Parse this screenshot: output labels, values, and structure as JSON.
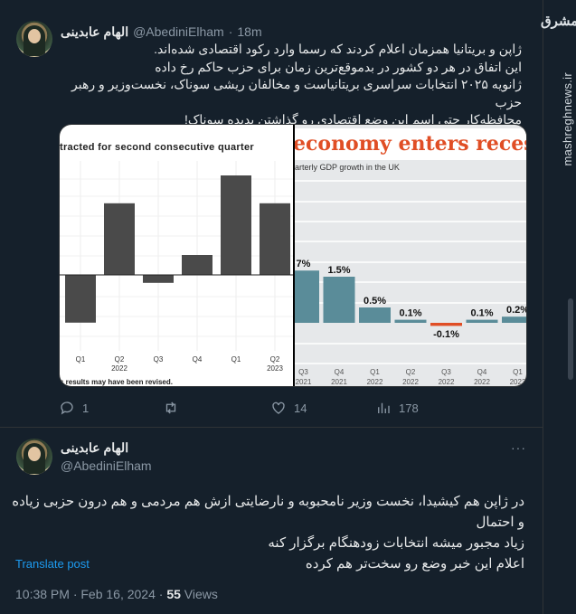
{
  "tweet1": {
    "display_name": "الهام عابدینی",
    "handle": "@AbediniElham",
    "time": "18m",
    "text_lines": [
      "ژاپن و بریتانیا همزمان اعلام کردند که رسما وارد رکود اقتصادی شده‌اند.",
      "این اتفاق در هر دو کشور در بدموقع‌ترین زمان برای حزب حاکم رخ داده",
      "ژانویه ۲۰۲۵ انتخابات سراسری بریتانیاست و مخالفان ریشی سوناک، نخست‌وزیر و رهبر حزب",
      "محافظه‌کار حتی اسم این وضع اقتصادی رو گذاشتن پدیده سوناک!"
    ],
    "actions": {
      "replies": "1",
      "likes": "14",
      "views": "178"
    }
  },
  "left_chart": {
    "title": "tracted for second consecutive quarter",
    "quarters": [
      "Q1",
      "Q2",
      "Q3",
      "Q4",
      "Q1",
      "Q2"
    ],
    "years": [
      "",
      "2022",
      "",
      "",
      "",
      "2023"
    ],
    "values": [
      -0.6,
      0.9,
      -0.1,
      0.25,
      1.25,
      0.9
    ],
    "footnote": "s results may have been revised.",
    "bar_color": "#4a4a4a"
  },
  "right_chart": {
    "title": "economy enters reces",
    "subtitle": "arterly GDP growth in the UK",
    "quarters": [
      "Q3",
      "Q4",
      "Q1",
      "Q2",
      "Q3",
      "Q4",
      "Q1"
    ],
    "years": [
      "2021",
      "2021",
      "2022",
      "2022",
      "2022",
      "2022",
      "2023"
    ],
    "values": [
      1.7,
      1.5,
      0.5,
      0.1,
      -0.1,
      0.1,
      0.2
    ],
    "labels": [
      "7%",
      "1.5%",
      "0.5%",
      "0.1%",
      "-0.1%",
      "0.1%",
      "0.2%"
    ],
    "title_color": "#e04e25",
    "bar_color": "#5a8c99",
    "negative_color": "#e04e25"
  },
  "tweet2": {
    "display_name": "الهام عابدینی",
    "handle": "@AbediniElham",
    "text_lines": [
      "در ژاپن هم کیشیدا، نخست وزیر نامحبوبه و نارضایتی ازش هم مردمی و هم درون حزبی زیاده و احتمال",
      "زیاد مجبور میشه انتخابات زودهنگام برگزار کنه",
      "اعلام این خبر وضع رو سخت‌تر هم کرده"
    ],
    "translate": "Translate post",
    "timestamp": "10:38 PM · Feb 16, 2024 · ",
    "views_count": "55",
    "views_label": " Views"
  },
  "watermark": {
    "site": "mashreghnews.ir",
    "logo": "مشرق"
  }
}
